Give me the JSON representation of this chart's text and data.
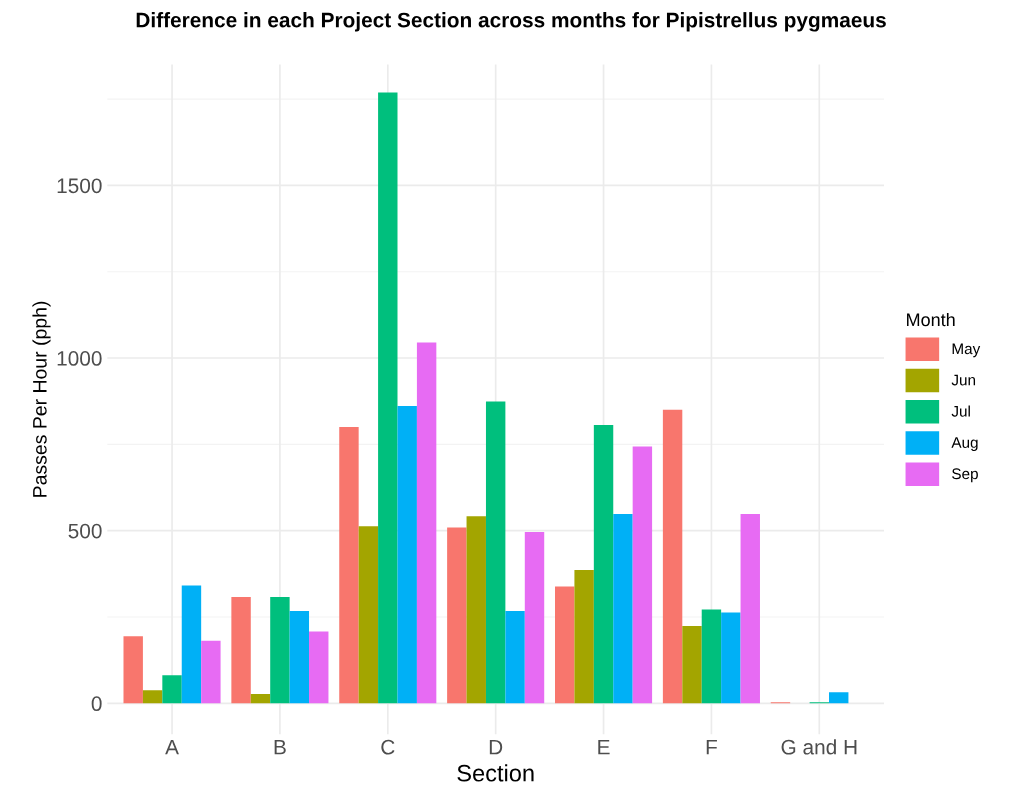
{
  "chart_data": {
    "type": "bar",
    "title": "Difference in each Project Section across months for Pipistrellus pygmaeus",
    "xlabel": "Section",
    "ylabel": "Passes Per Hour (pph)",
    "legend_title": "Month",
    "categories": [
      "A",
      "B",
      "C",
      "D",
      "E",
      "F",
      "G and H"
    ],
    "series": [
      {
        "name": "May",
        "color": "#f8766d",
        "values": [
          194,
          308,
          800,
          509,
          338,
          850,
          3
        ]
      },
      {
        "name": "Jun",
        "color": "#a3a500",
        "values": [
          38,
          27,
          513,
          542,
          386,
          224,
          0
        ]
      },
      {
        "name": "Jul",
        "color": "#00bf7d",
        "values": [
          81,
          308,
          1769,
          874,
          806,
          272,
          3
        ]
      },
      {
        "name": "Aug",
        "color": "#00b0f6",
        "values": [
          341,
          267,
          861,
          267,
          548,
          263,
          32
        ]
      },
      {
        "name": "Sep",
        "color": "#e76bf3",
        "values": [
          181,
          208,
          1045,
          496,
          744,
          548,
          0
        ]
      }
    ],
    "ylim": [
      -90,
      1850
    ],
    "yticks": [
      0,
      500,
      1000,
      1500
    ],
    "grid": true,
    "legend": "right"
  }
}
